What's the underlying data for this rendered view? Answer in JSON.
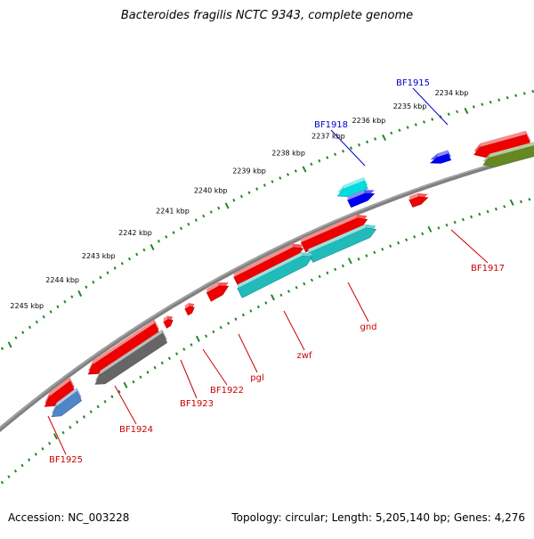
{
  "title": "Bacteroides fragilis NCTC 9343, complete genome",
  "footer": {
    "accession": "Accession: NC_003228",
    "topology": "Topology: circular; Length: 5,205,140 bp; Genes: 4,276"
  },
  "colors": {
    "backbone": "#808080",
    "ticks": "#228822",
    "label_forward": "#0000cc",
    "label_reverse": "#cc0000",
    "red": "#ee0000",
    "blue": "#0000ee",
    "cyan": "#00dddd",
    "teal": "#22bbbb",
    "olive": "#668822",
    "gray": "#666666",
    "steel": "#4f86c6"
  },
  "scale_labels": [
    "2234 kbp",
    "2235 kbp",
    "2236 kbp",
    "2237 kbp",
    "2238 kbp",
    "2239 kbp",
    "2240 kbp",
    "2241 kbp",
    "2242 kbp",
    "2243 kbp",
    "2244 kbp",
    "2245 kbp"
  ],
  "genes": [
    {
      "name": "BF1915",
      "strand": "forward",
      "label_color": "blue"
    },
    {
      "name": "BF1918",
      "strand": "forward",
      "label_color": "blue"
    },
    {
      "name": "BF1917",
      "strand": "reverse",
      "label_color": "red"
    },
    {
      "name": "gnd",
      "strand": "reverse",
      "label_color": "red"
    },
    {
      "name": "zwf",
      "strand": "reverse",
      "label_color": "red"
    },
    {
      "name": "pgl",
      "strand": "reverse",
      "label_color": "red"
    },
    {
      "name": "BF1922",
      "strand": "reverse",
      "label_color": "red"
    },
    {
      "name": "BF1923",
      "strand": "reverse",
      "label_color": "red"
    },
    {
      "name": "BF1924",
      "strand": "reverse",
      "label_color": "red"
    },
    {
      "name": "BF1925",
      "strand": "reverse",
      "label_color": "red"
    }
  ]
}
